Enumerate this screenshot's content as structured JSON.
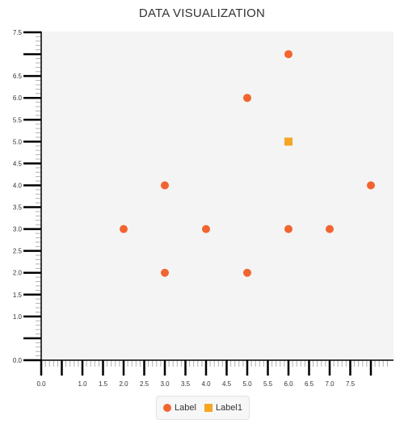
{
  "chart_data": {
    "type": "scatter",
    "title": "DATA VISUALIZATION",
    "xlabel": "",
    "ylabel": "",
    "xlim": [
      0,
      8.4
    ],
    "ylim": [
      0,
      7.5
    ],
    "grid": false,
    "legend_position": "bottom-center",
    "x_tick_labels": [
      "0.0",
      "1.0",
      "1.5",
      "2.0",
      "2.5",
      "3.0",
      "3.5",
      "4.0",
      "4.5",
      "5.0",
      "5.5",
      "6.0",
      "6.5",
      "7.0",
      "7.5"
    ],
    "y_tick_labels": [
      "0.0",
      "1.0",
      "1.5",
      "2.0",
      "2.5",
      "3.0",
      "3.5",
      "4.0",
      "4.5",
      "5.0",
      "5.5",
      "6.0",
      "6.5",
      "7.5"
    ],
    "series": [
      {
        "name": "Label",
        "marker": "circle",
        "color": "#f26430",
        "points": [
          {
            "x": 2.0,
            "y": 3.0
          },
          {
            "x": 3.0,
            "y": 2.0
          },
          {
            "x": 3.0,
            "y": 4.0
          },
          {
            "x": 4.0,
            "y": 3.0
          },
          {
            "x": 5.0,
            "y": 2.0
          },
          {
            "x": 5.0,
            "y": 6.0
          },
          {
            "x": 6.0,
            "y": 3.0
          },
          {
            "x": 6.0,
            "y": 7.0
          },
          {
            "x": 7.0,
            "y": 3.0
          },
          {
            "x": 8.0,
            "y": 4.0
          }
        ]
      },
      {
        "name": "Label1",
        "marker": "square",
        "color": "#f5a623",
        "points": [
          {
            "x": 6.0,
            "y": 5.0
          }
        ]
      }
    ]
  },
  "colors": {
    "plot_background": "#f4f4f4",
    "axis": "#000000",
    "minor_tick": "#b0b0b0"
  }
}
